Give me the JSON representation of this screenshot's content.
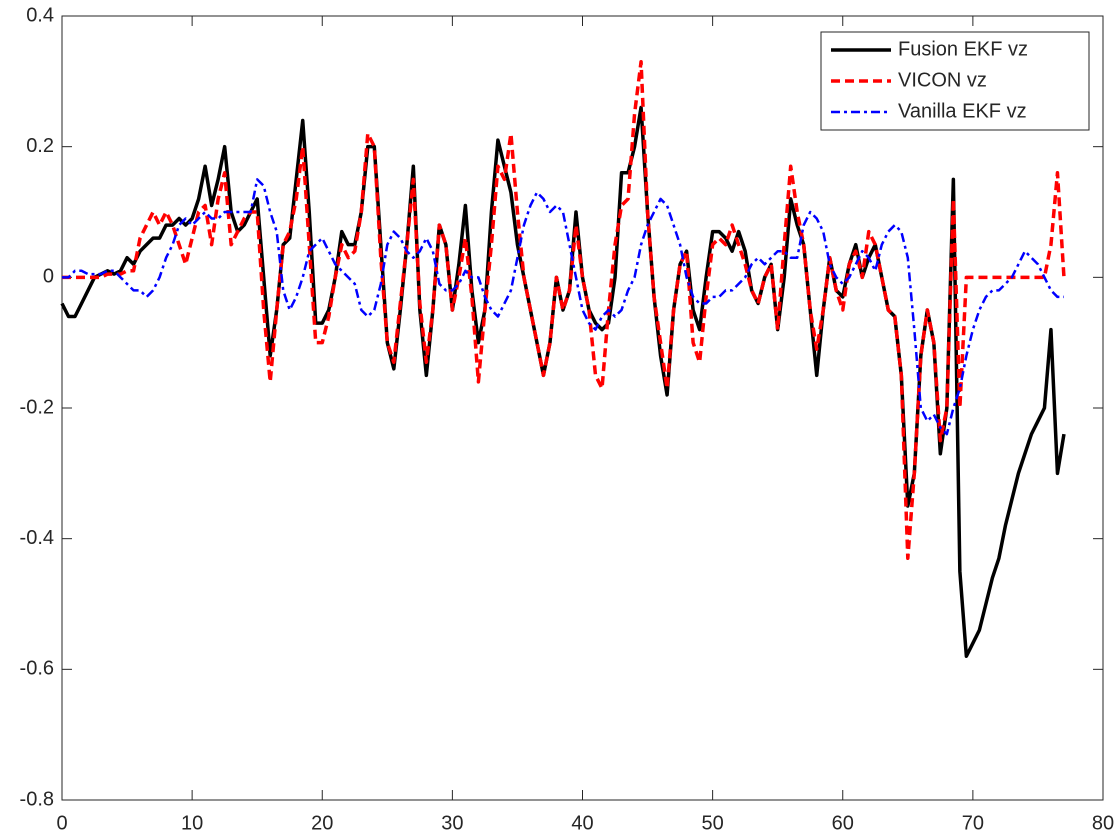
{
  "chart_data": {
    "type": "line",
    "x": [
      0,
      0.5,
      1,
      1.5,
      2,
      2.5,
      3,
      3.5,
      4,
      4.5,
      5,
      5.5,
      6,
      6.5,
      7,
      7.5,
      8,
      8.5,
      9,
      9.5,
      10,
      10.5,
      11,
      11.5,
      12,
      12.5,
      13,
      13.5,
      14,
      14.5,
      15,
      15.5,
      16,
      16.5,
      17,
      17.5,
      18,
      18.5,
      19,
      19.5,
      20,
      20.5,
      21,
      21.5,
      22,
      22.5,
      23,
      23.5,
      24,
      24.5,
      25,
      25.5,
      26,
      26.5,
      27,
      27.5,
      28,
      28.5,
      29,
      29.5,
      30,
      30.5,
      31,
      31.5,
      32,
      32.5,
      33,
      33.5,
      34,
      34.5,
      35,
      35.5,
      36,
      36.5,
      37,
      37.5,
      38,
      38.5,
      39,
      39.5,
      40,
      40.5,
      41,
      41.5,
      42,
      42.5,
      43,
      43.5,
      44,
      44.5,
      45,
      45.5,
      46,
      46.5,
      47,
      47.5,
      48,
      48.5,
      49,
      49.5,
      50,
      50.5,
      51,
      51.5,
      52,
      52.5,
      53,
      53.5,
      54,
      54.5,
      55,
      55.5,
      56,
      56.5,
      57,
      57.5,
      58,
      58.5,
      59,
      59.5,
      60,
      60.5,
      61,
      61.5,
      62,
      62.5,
      63,
      63.5,
      64,
      64.5,
      65,
      65.5,
      66,
      66.5,
      67,
      67.5,
      68,
      68.5,
      69,
      69.5,
      70,
      70.5,
      71,
      71.5,
      72,
      72.5,
      73,
      73.5,
      74,
      74.5,
      75,
      75.5,
      76,
      76.5,
      77
    ],
    "series": [
      {
        "name": "Fusion EKF vz",
        "color": "#000000",
        "linestyle": "solid",
        "values": [
          -0.04,
          -0.06,
          -0.06,
          -0.04,
          -0.02,
          0,
          0.005,
          0.01,
          0.005,
          0.01,
          0.03,
          0.02,
          0.04,
          0.05,
          0.06,
          0.06,
          0.08,
          0.08,
          0.09,
          0.08,
          0.09,
          0.12,
          0.17,
          0.11,
          0.15,
          0.2,
          0.1,
          0.07,
          0.08,
          0.1,
          0.12,
          0,
          -0.12,
          -0.05,
          0.05,
          0.06,
          0.15,
          0.24,
          0.1,
          -0.07,
          -0.07,
          -0.05,
          0,
          0.07,
          0.05,
          0.05,
          0.1,
          0.2,
          0.2,
          0.05,
          -0.1,
          -0.14,
          -0.05,
          0.05,
          0.17,
          -0.05,
          -0.15,
          -0.05,
          0.08,
          0.05,
          -0.05,
          0.02,
          0.11,
          -0.02,
          -0.1,
          -0.05,
          0.1,
          0.21,
          0.17,
          0.13,
          0.05,
          0,
          -0.05,
          -0.1,
          -0.15,
          -0.1,
          0,
          -0.05,
          -0.02,
          0.1,
          0,
          -0.05,
          -0.07,
          -0.08,
          -0.07,
          0,
          0.16,
          0.16,
          0.2,
          0.26,
          0.1,
          -0.03,
          -0.12,
          -0.18,
          -0.05,
          0.02,
          0.04,
          -0.05,
          -0.08,
          0,
          0.07,
          0.07,
          0.06,
          0.04,
          0.07,
          0.04,
          -0.02,
          -0.04,
          0,
          0.02,
          -0.08,
          0,
          0.12,
          0.08,
          0.05,
          -0.05,
          -0.15,
          -0.05,
          0.03,
          -0.02,
          -0.03,
          0.02,
          0.05,
          0,
          0.03,
          0.05,
          0,
          -0.05,
          -0.06,
          -0.15,
          -0.35,
          -0.3,
          -0.12,
          -0.05,
          -0.1,
          -0.27,
          -0.2,
          0.15,
          -0.45,
          -0.58,
          -0.56,
          -0.54,
          -0.5,
          -0.46,
          -0.43,
          -0.38,
          -0.34,
          -0.3,
          -0.27,
          -0.24,
          -0.22,
          -0.2,
          -0.08,
          -0.3,
          -0.24
        ]
      },
      {
        "name": "VICON vz",
        "color": "#ff0000",
        "linestyle": "dashed",
        "values": [
          0,
          0,
          0,
          0,
          0,
          0,
          0,
          0.005,
          0.005,
          0.005,
          0.01,
          0.01,
          0.06,
          0.08,
          0.1,
          0.08,
          0.1,
          0.08,
          0.05,
          0.02,
          0.06,
          0.1,
          0.11,
          0.05,
          0.12,
          0.16,
          0.05,
          0.07,
          0.09,
          0.1,
          0.1,
          -0.05,
          -0.16,
          -0.05,
          0.05,
          0.07,
          0.12,
          0.2,
          0.05,
          -0.1,
          -0.1,
          -0.06,
          0,
          0.05,
          0.03,
          0.04,
          0.1,
          0.22,
          0.2,
          0.03,
          -0.1,
          -0.13,
          -0.04,
          0.05,
          0.15,
          -0.04,
          -0.13,
          -0.05,
          0.08,
          0.05,
          -0.05,
          0,
          0.06,
          -0.03,
          -0.16,
          -0.05,
          0.05,
          0.17,
          0.15,
          0.22,
          0.1,
          0,
          -0.05,
          -0.1,
          -0.15,
          -0.1,
          0,
          -0.05,
          -0.02,
          0.08,
          0,
          -0.05,
          -0.15,
          -0.17,
          -0.05,
          0.05,
          0.11,
          0.12,
          0.25,
          0.33,
          0.1,
          -0.03,
          -0.1,
          -0.17,
          -0.05,
          0.02,
          0.04,
          -0.1,
          -0.13,
          -0.03,
          0.05,
          0.06,
          0.05,
          0.08,
          0.05,
          0.02,
          -0.02,
          -0.04,
          0,
          0.02,
          -0.08,
          0.05,
          0.17,
          0.1,
          0.05,
          -0.05,
          -0.11,
          -0.05,
          0.03,
          -0.02,
          -0.05,
          0.02,
          0.04,
          0,
          0.07,
          0.05,
          0,
          -0.05,
          -0.06,
          -0.15,
          -0.43,
          -0.3,
          -0.12,
          -0.05,
          -0.1,
          -0.25,
          -0.2,
          0.12,
          -0.2,
          0,
          0,
          0,
          0,
          0,
          0,
          0,
          0,
          0,
          0,
          0,
          0,
          0,
          0.05,
          0.16,
          0
        ]
      },
      {
        "name": "Vanilla EKF vz",
        "color": "#0000ff",
        "linestyle": "dashdot",
        "values": [
          0,
          0,
          0.01,
          0.01,
          0.005,
          0.005,
          0.005,
          0.01,
          0.01,
          0,
          -0.01,
          -0.02,
          -0.02,
          -0.03,
          -0.02,
          0,
          0.03,
          0.05,
          0.08,
          0.09,
          0.08,
          0.09,
          0.1,
          0.09,
          0.09,
          0.1,
          0.1,
          0.1,
          0.1,
          0.1,
          0.15,
          0.14,
          0.1,
          0.07,
          -0.02,
          -0.05,
          -0.03,
          0,
          0.04,
          0.05,
          0.06,
          0.04,
          0.02,
          0.01,
          0,
          -0.01,
          -0.05,
          -0.06,
          -0.05,
          -0.01,
          0.05,
          0.07,
          0.06,
          0.04,
          0.03,
          0.04,
          0.06,
          0.04,
          -0.01,
          -0.02,
          -0.02,
          -0.01,
          0.01,
          0,
          0,
          -0.03,
          -0.05,
          -0.06,
          -0.04,
          -0.02,
          0.03,
          0.08,
          0.11,
          0.13,
          0.12,
          0.1,
          0.11,
          0.1,
          0.05,
          0,
          -0.05,
          -0.07,
          -0.08,
          -0.06,
          -0.05,
          -0.06,
          -0.05,
          -0.02,
          0,
          0.05,
          0.08,
          0.1,
          0.12,
          0.11,
          0.08,
          0.05,
          0,
          -0.03,
          -0.04,
          -0.04,
          -0.03,
          -0.03,
          -0.02,
          -0.02,
          -0.01,
          0,
          0.02,
          0.03,
          0.02,
          0.03,
          0.04,
          0.04,
          0.03,
          0.03,
          0.08,
          0.1,
          0.09,
          0.07,
          0.02,
          0,
          -0.01,
          0,
          0.02,
          0.04,
          0.03,
          0.01,
          0.05,
          0.07,
          0.08,
          0.07,
          0.03,
          -0.08,
          -0.2,
          -0.22,
          -0.21,
          -0.23,
          -0.24,
          -0.2,
          -0.17,
          -0.12,
          -0.08,
          -0.05,
          -0.03,
          -0.02,
          -0.02,
          -0.01,
          0,
          0.02,
          0.04,
          0.03,
          0.02,
          0,
          -0.02,
          -0.03,
          -0.03
        ]
      }
    ],
    "xlim": [
      0,
      80
    ],
    "xticks": [
      0,
      10,
      20,
      30,
      40,
      50,
      60,
      70,
      80
    ],
    "ylim": [
      -0.8,
      0.4
    ],
    "yticks": [
      -0.8,
      -0.6,
      -0.4,
      -0.2,
      0,
      0.2,
      0.4
    ],
    "grid": false,
    "legend": "northeast"
  }
}
